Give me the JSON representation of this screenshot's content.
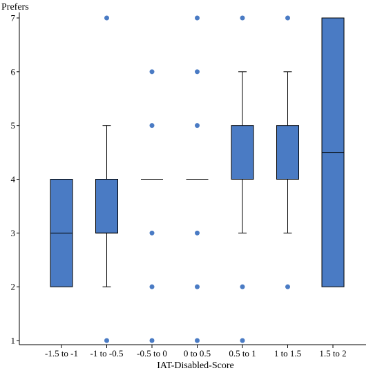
{
  "chart_data": {
    "type": "box",
    "ylabel": "Prefers",
    "xlabel": "IAT-Disabled-Score",
    "ylim": [
      1,
      7
    ],
    "yticks": [
      1,
      2,
      3,
      4,
      5,
      6,
      7
    ],
    "categories": [
      "-1.5 to -1",
      "-1 to -0.5",
      "-0.5 to 0",
      "0 to 0.5",
      "0.5 to 1",
      "1 to 1.5",
      "1.5 to 2"
    ],
    "boxes": [
      {
        "category": "-1.5 to -1",
        "q1": 2,
        "median": 3,
        "q3": 4,
        "whisker_low": 2,
        "whisker_high": 4,
        "outliers": []
      },
      {
        "category": "-1 to -0.5",
        "q1": 3,
        "median": 3,
        "q3": 4,
        "whisker_low": 2,
        "whisker_high": 5,
        "outliers": [
          1,
          7
        ]
      },
      {
        "category": "-0.5 to 0",
        "q1": 4,
        "median": 4,
        "q3": 4,
        "whisker_low": 4,
        "whisker_high": 4,
        "outliers": [
          1,
          2,
          3,
          5,
          6
        ]
      },
      {
        "category": "0 to 0.5",
        "q1": 4,
        "median": 4,
        "q3": 4,
        "whisker_low": 4,
        "whisker_high": 4,
        "outliers": [
          1,
          2,
          3,
          5,
          6,
          7
        ]
      },
      {
        "category": "0.5 to 1",
        "q1": 4,
        "median": 4,
        "q3": 5,
        "whisker_low": 3,
        "whisker_high": 6,
        "outliers": [
          1,
          2,
          7
        ]
      },
      {
        "category": "1 to 1.5",
        "q1": 4,
        "median": 4,
        "q3": 5,
        "whisker_low": 3,
        "whisker_high": 6,
        "outliers": [
          2,
          7
        ]
      },
      {
        "category": "1.5 to 2",
        "q1": 2,
        "median": 4.5,
        "q3": 7,
        "whisker_low": 2,
        "whisker_high": 7,
        "outliers": []
      }
    ],
    "colors": {
      "box_fill": "#4a7bc4",
      "outlier": "#4a7bc4",
      "line": "#000000"
    },
    "grid": false,
    "legend": "none"
  }
}
